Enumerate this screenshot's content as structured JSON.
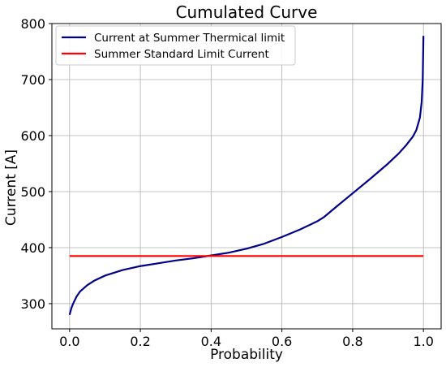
{
  "chart_data": {
    "type": "line",
    "title": "Cumulated Curve",
    "xlabel": "Probability",
    "ylabel": "Current [A]",
    "xlim": [
      -0.05,
      1.05
    ],
    "ylim": [
      255,
      800
    ],
    "xticks": [
      0.0,
      0.2,
      0.4,
      0.6,
      0.8,
      1.0
    ],
    "xtick_labels": [
      "0.0",
      "0.2",
      "0.4",
      "0.6",
      "0.8",
      "1.0"
    ],
    "yticks": [
      300,
      400,
      500,
      600,
      700,
      800
    ],
    "ytick_labels": [
      "300",
      "400",
      "500",
      "600",
      "700",
      "800"
    ],
    "grid": true,
    "legend_position": "top-left",
    "series": [
      {
        "name": "Current at Summer Thermical limit",
        "color": "#00008b",
        "x": [
          0.0,
          0.005,
          0.01,
          0.02,
          0.03,
          0.05,
          0.07,
          0.1,
          0.15,
          0.2,
          0.25,
          0.3,
          0.35,
          0.4,
          0.45,
          0.5,
          0.55,
          0.6,
          0.65,
          0.7,
          0.72,
          0.75,
          0.8,
          0.85,
          0.9,
          0.93,
          0.95,
          0.97,
          0.98,
          0.99,
          0.995,
          0.998,
          1.0
        ],
        "y": [
          280,
          292,
          300,
          313,
          322,
          333,
          341,
          350,
          360,
          367,
          372,
          377,
          381,
          386,
          391,
          398,
          407,
          419,
          432,
          447,
          455,
          471,
          497,
          523,
          550,
          568,
          582,
          598,
          610,
          632,
          660,
          700,
          778
        ]
      },
      {
        "name": "Summer Standard Limit Current",
        "color": "#ff0000",
        "x": [
          0.0,
          1.0
        ],
        "y": [
          385,
          385
        ]
      }
    ]
  }
}
